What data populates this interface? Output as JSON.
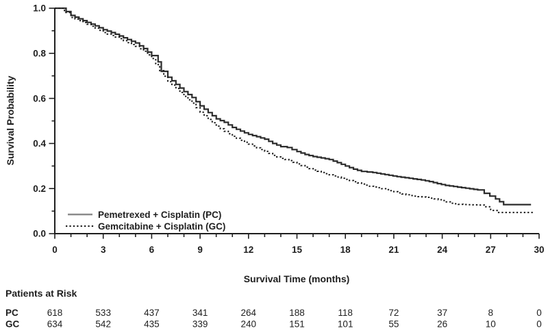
{
  "chart_data": {
    "type": "line",
    "subtype": "kaplan-meier-step-survival",
    "title": "",
    "xlabel": "Survival Time (months)",
    "ylabel": "Survival Probability",
    "xlim": [
      0,
      30
    ],
    "ylim": [
      0.0,
      1.0
    ],
    "x_major_ticks": [
      0,
      3,
      6,
      9,
      12,
      15,
      18,
      21,
      24,
      27,
      30
    ],
    "x_minor_tick_step": 1,
    "y_major_ticks": [
      0.0,
      0.2,
      0.4,
      0.6,
      0.8,
      1.0
    ],
    "y_minor_ticks": [
      0.1,
      0.3,
      0.5,
      0.7,
      0.9
    ],
    "grid": false,
    "legend_position": "inside-lower-left",
    "series": [
      {
        "name": "Pemetrexed + Cisplatin (PC)",
        "abbr": "PC",
        "line_style": "solid",
        "color": "#2b2b2b",
        "points": [
          [
            0,
            1.0
          ],
          [
            0.3,
            1.0
          ],
          [
            0.7,
            0.985
          ],
          [
            1,
            0.968
          ],
          [
            1.5,
            0.953
          ],
          [
            2,
            0.937
          ],
          [
            2.5,
            0.922
          ],
          [
            3,
            0.905
          ],
          [
            3.5,
            0.892
          ],
          [
            4,
            0.877
          ],
          [
            4.5,
            0.861
          ],
          [
            5,
            0.846
          ],
          [
            5.5,
            0.821
          ],
          [
            6,
            0.79
          ],
          [
            6.4,
            0.762
          ],
          [
            6.6,
            0.72
          ],
          [
            7,
            0.694
          ],
          [
            7.5,
            0.662
          ],
          [
            8,
            0.63
          ],
          [
            8.5,
            0.604
          ],
          [
            9,
            0.567
          ],
          [
            9.5,
            0.537
          ],
          [
            10,
            0.509
          ],
          [
            10.5,
            0.494
          ],
          [
            11,
            0.471
          ],
          [
            11.5,
            0.455
          ],
          [
            12,
            0.44
          ],
          [
            12.5,
            0.43
          ],
          [
            13,
            0.419
          ],
          [
            13.5,
            0.4
          ],
          [
            14,
            0.386
          ],
          [
            14.4,
            0.382
          ],
          [
            15,
            0.364
          ],
          [
            15.5,
            0.351
          ],
          [
            16,
            0.342
          ],
          [
            16.5,
            0.336
          ],
          [
            17,
            0.329
          ],
          [
            17.5,
            0.315
          ],
          [
            18,
            0.3
          ],
          [
            18.5,
            0.286
          ],
          [
            19,
            0.276
          ],
          [
            19.7,
            0.271
          ],
          [
            20.2,
            0.265
          ],
          [
            20.7,
            0.259
          ],
          [
            21.2,
            0.253
          ],
          [
            21.7,
            0.248
          ],
          [
            22.2,
            0.243
          ],
          [
            22.7,
            0.238
          ],
          [
            23.2,
            0.231
          ],
          [
            23.7,
            0.222
          ],
          [
            24.2,
            0.214
          ],
          [
            24.7,
            0.209
          ],
          [
            25.2,
            0.204
          ],
          [
            25.7,
            0.199
          ],
          [
            26.2,
            0.194
          ],
          [
            26.6,
            0.179
          ],
          [
            27.3,
            0.154
          ],
          [
            27.8,
            0.129
          ],
          [
            29.5,
            0.129
          ]
        ]
      },
      {
        "name": "Gemcitabine + Cisplatin (GC)",
        "abbr": "GC",
        "line_style": "dotted",
        "color": "#1a1a1a",
        "points": [
          [
            0,
            1.0
          ],
          [
            0.2,
            1.0
          ],
          [
            0.6,
            0.981
          ],
          [
            1,
            0.959
          ],
          [
            1.5,
            0.945
          ],
          [
            2,
            0.929
          ],
          [
            2.5,
            0.912
          ],
          [
            3,
            0.892
          ],
          [
            3.5,
            0.879
          ],
          [
            4,
            0.865
          ],
          [
            4.5,
            0.847
          ],
          [
            5,
            0.831
          ],
          [
            5.5,
            0.809
          ],
          [
            6,
            0.777
          ],
          [
            6.5,
            0.723
          ],
          [
            7,
            0.674
          ],
          [
            7.5,
            0.644
          ],
          [
            8,
            0.609
          ],
          [
            8.5,
            0.579
          ],
          [
            9,
            0.539
          ],
          [
            9.5,
            0.507
          ],
          [
            10,
            0.477
          ],
          [
            10.5,
            0.454
          ],
          [
            11,
            0.432
          ],
          [
            11.5,
            0.414
          ],
          [
            12,
            0.397
          ],
          [
            12.5,
            0.381
          ],
          [
            13,
            0.365
          ],
          [
            13.5,
            0.347
          ],
          [
            14,
            0.334
          ],
          [
            14.5,
            0.324
          ],
          [
            15,
            0.309
          ],
          [
            15.5,
            0.295
          ],
          [
            16,
            0.282
          ],
          [
            16.5,
            0.271
          ],
          [
            17,
            0.261
          ],
          [
            17.5,
            0.251
          ],
          [
            18,
            0.241
          ],
          [
            18.5,
            0.23
          ],
          [
            19,
            0.22
          ],
          [
            19.5,
            0.21
          ],
          [
            20,
            0.204
          ],
          [
            20.5,
            0.195
          ],
          [
            21,
            0.186
          ],
          [
            21.5,
            0.176
          ],
          [
            22,
            0.169
          ],
          [
            22.5,
            0.164
          ],
          [
            23,
            0.161
          ],
          [
            23.5,
            0.154
          ],
          [
            24,
            0.147
          ],
          [
            24.5,
            0.135
          ],
          [
            25,
            0.13
          ],
          [
            26.2,
            0.127
          ],
          [
            26.6,
            0.119
          ],
          [
            27,
            0.103
          ],
          [
            27.4,
            0.094
          ],
          [
            29.7,
            0.094
          ]
        ]
      }
    ],
    "at_risk": {
      "title": "Patients at Risk",
      "times": [
        0,
        3,
        6,
        9,
        12,
        15,
        18,
        21,
        24,
        27,
        30
      ],
      "rows": [
        {
          "label": "PC",
          "counts": [
            618,
            533,
            437,
            341,
            264,
            188,
            118,
            72,
            37,
            8,
            0
          ]
        },
        {
          "label": "GC",
          "counts": [
            634,
            542,
            435,
            339,
            240,
            151,
            101,
            55,
            26,
            10,
            0
          ]
        }
      ]
    },
    "colors": {
      "background": "#ffffff",
      "axis": "#1e1e1e",
      "text": "#1e1e1e",
      "pc_curve": "#2b2b2b",
      "gc_curve": "#1a1a1a",
      "legend_solid_swatch": "#8a8a8a"
    }
  }
}
